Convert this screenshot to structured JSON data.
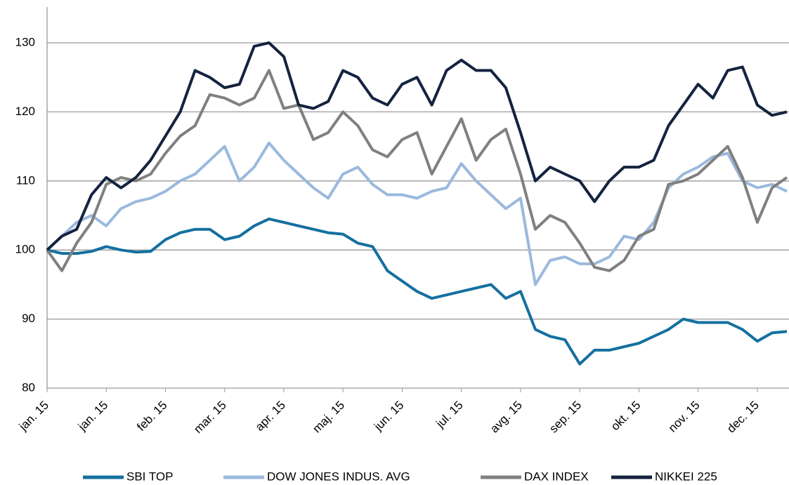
{
  "chart_data": {
    "type": "line",
    "categories": [
      "jan. 15",
      null,
      null,
      null,
      "jan. 15",
      null,
      null,
      null,
      "feb. 15",
      null,
      null,
      null,
      "mar. 15",
      null,
      null,
      null,
      "apr. 15",
      null,
      null,
      null,
      "maj. 15",
      null,
      null,
      null,
      "jun. 15",
      null,
      null,
      null,
      "jul. 15",
      null,
      null,
      null,
      "avg. 15",
      null,
      null,
      null,
      "sep. 15",
      null,
      null,
      null,
      "okt. 15",
      null,
      null,
      null,
      "nov. 15",
      null,
      null,
      null,
      "dec. 15",
      null,
      null
    ],
    "series": [
      {
        "name": "SBI TOP",
        "color": "#1470a0",
        "values": [
          100,
          99.5,
          99.5,
          99.8,
          100.5,
          100,
          99.7,
          99.8,
          101.5,
          102.5,
          103,
          103,
          101.5,
          102,
          103.5,
          104.5,
          104,
          103.5,
          103,
          102.5,
          102.3,
          101,
          100.5,
          97,
          95.5,
          94,
          93,
          93.5,
          94,
          94.5,
          95,
          93,
          94,
          88.5,
          87.5,
          87,
          83.5,
          85.5,
          85.5,
          86,
          86.5,
          87.5,
          88.5,
          90,
          89.5,
          89.5,
          89.5,
          88.5,
          86.8,
          88,
          88.2
        ]
      },
      {
        "name": "DOW JONES INDUS. AVG",
        "color": "#9bb9dd",
        "values": [
          100,
          102,
          104,
          105,
          103.5,
          106,
          107,
          107.5,
          108.5,
          110,
          111,
          113,
          115,
          110,
          112,
          115.5,
          113,
          111,
          109,
          107.5,
          111,
          112,
          109.5,
          108,
          108,
          107.5,
          108.5,
          109,
          112.5,
          110,
          108,
          106,
          107.5,
          95,
          98.5,
          99,
          98,
          98,
          99,
          102,
          101.5,
          104,
          109,
          111,
          112,
          113.5,
          114,
          110,
          109,
          109.5,
          108.5
        ]
      },
      {
        "name": "DAX INDEX",
        "color": "#808080",
        "values": [
          100,
          97,
          101,
          104,
          109.5,
          110.5,
          110,
          111,
          114,
          116.5,
          118,
          122.5,
          122,
          121,
          122,
          126,
          120.5,
          121,
          116,
          117,
          120,
          118,
          114.5,
          113.5,
          116,
          117,
          111,
          115,
          119,
          113,
          116,
          117.5,
          111,
          103,
          105,
          104,
          101,
          97.5,
          97,
          98.5,
          102,
          103,
          109.5,
          110,
          111,
          113,
          115,
          110.5,
          104,
          109,
          110.5
        ]
      },
      {
        "name": "NIKKEI 225",
        "color": "#14233f",
        "values": [
          100,
          102,
          103,
          108,
          110.5,
          109,
          110.5,
          113,
          116.5,
          120,
          126,
          125,
          123.5,
          124,
          129.5,
          130,
          128,
          121,
          120.5,
          121.5,
          126,
          125,
          122,
          121,
          124,
          125,
          121,
          126,
          127.5,
          126,
          126,
          123.5,
          117,
          110,
          112,
          111,
          110,
          107,
          110,
          112,
          112,
          113,
          118,
          121,
          124,
          122,
          126,
          126.5,
          121,
          119.5,
          120
        ]
      }
    ],
    "ylim": [
      80,
      130
    ],
    "yticks": [
      80,
      90,
      100,
      110,
      120,
      130
    ],
    "grid": true
  }
}
